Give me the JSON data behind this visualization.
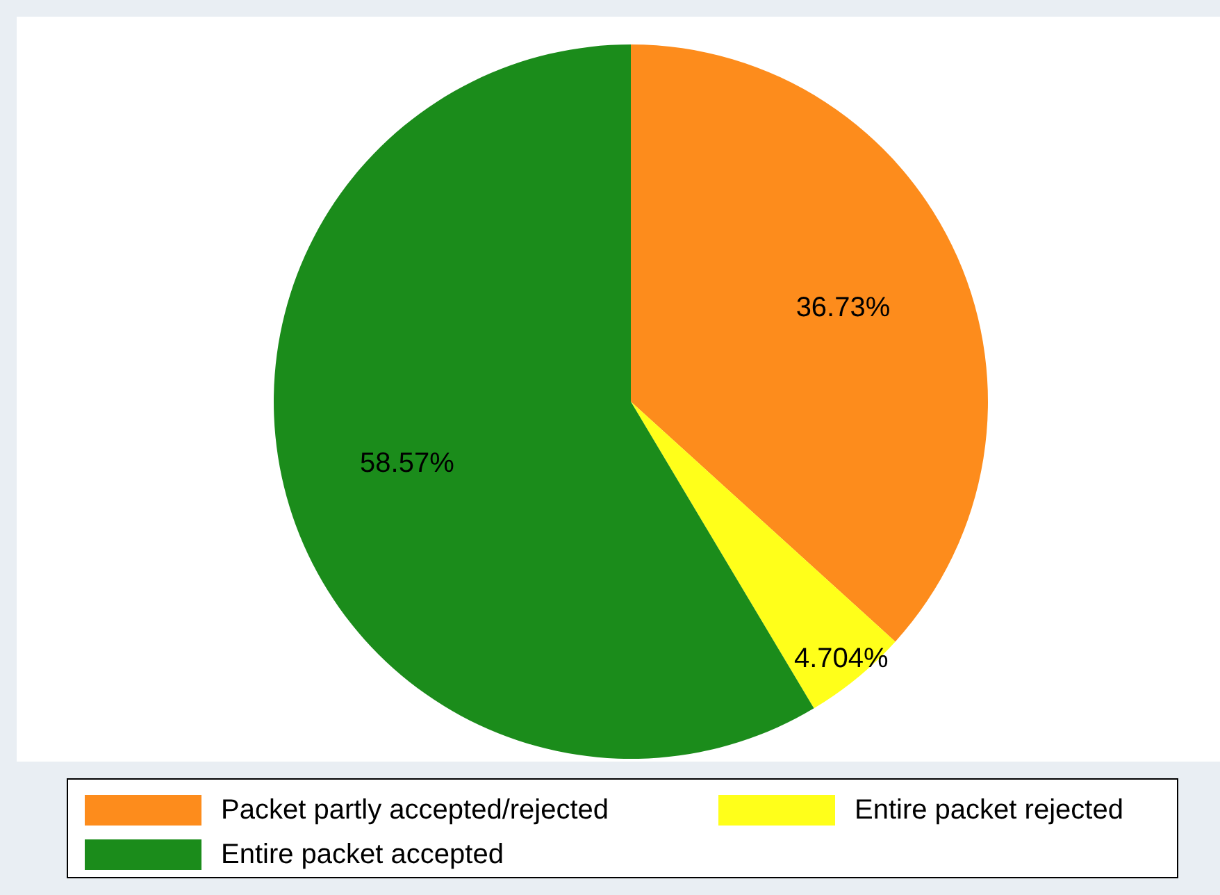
{
  "chart_data": {
    "type": "pie",
    "categories": [
      "Packet partly accepted/rejected",
      "Entire packet rejected",
      "Entire packet accepted"
    ],
    "values": [
      36.73,
      4.704,
      58.57
    ],
    "value_labels": [
      "36.73%",
      "4.704%",
      "58.57%"
    ],
    "colors": [
      "#fd8c1c",
      "#ffff1a",
      "#1b8c1b"
    ],
    "legend": "bottom"
  }
}
